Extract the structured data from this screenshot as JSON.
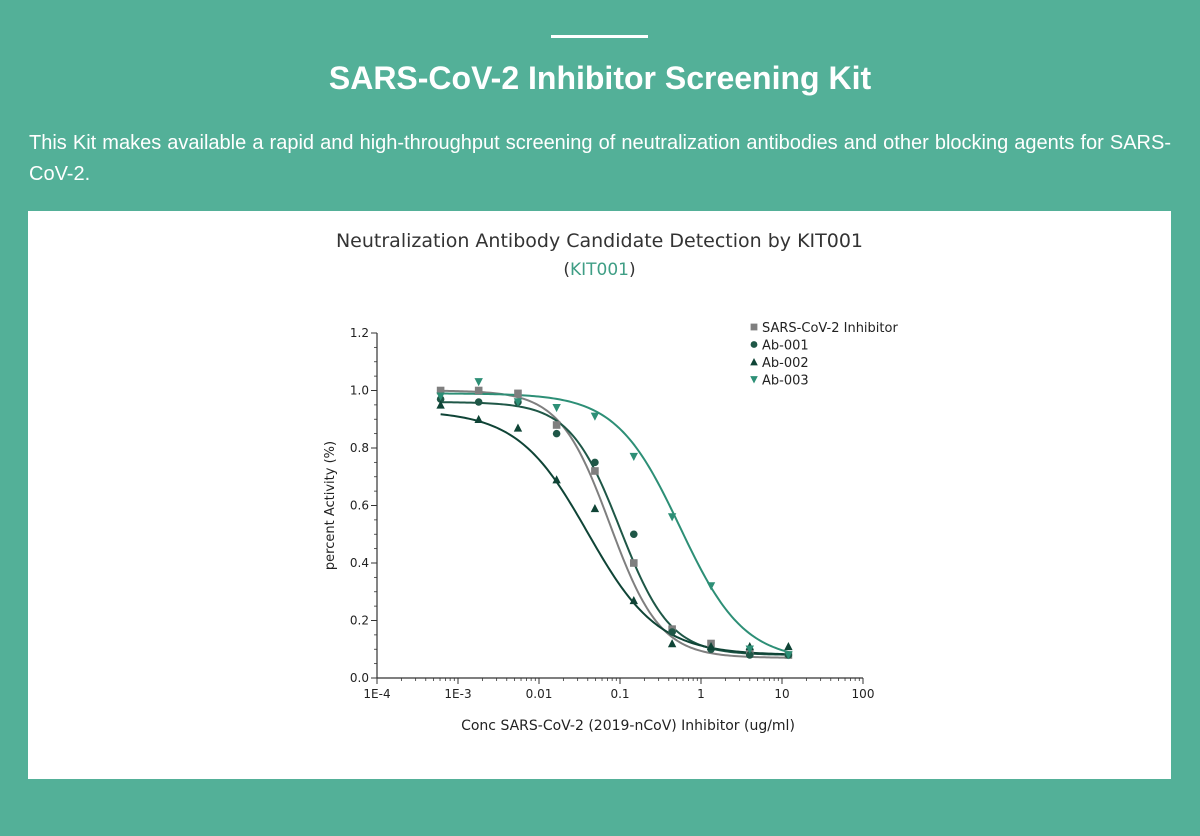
{
  "header": {
    "title": "SARS-CoV-2 Inhibitor Screening Kit",
    "description": "This Kit makes available a rapid and high-throughput screening of neutralization antibodies and other blocking agents for SARS-CoV-2."
  },
  "colors": {
    "background": "#53b098",
    "panel": "#ffffff",
    "accent": "#3f9e85"
  },
  "chart_data": {
    "type": "scatter",
    "title": "Neutralization Antibody Candidate Detection by KIT001",
    "subtitle_open": "(",
    "subtitle_link": "KIT001",
    "subtitle_close": ")",
    "xlabel": "Conc SARS-CoV-2 (2019-nCoV) Inhibitor (ug/ml)",
    "ylabel": "percent Activity (%)",
    "xscale": "log",
    "xlim": [
      0.0001,
      100
    ],
    "ylim": [
      0.0,
      1.2
    ],
    "xticks": [
      {
        "v": 0.0001,
        "label": "1E-4"
      },
      {
        "v": 0.001,
        "label": "1E-3"
      },
      {
        "v": 0.01,
        "label": "0.01"
      },
      {
        "v": 0.1,
        "label": "0.1"
      },
      {
        "v": 1,
        "label": "1"
      },
      {
        "v": 10,
        "label": "10"
      },
      {
        "v": 100,
        "label": "100"
      }
    ],
    "yticks": [
      {
        "v": 0.0,
        "label": "0.0"
      },
      {
        "v": 0.2,
        "label": "0.2"
      },
      {
        "v": 0.4,
        "label": "0.4"
      },
      {
        "v": 0.6,
        "label": "0.6"
      },
      {
        "v": 0.8,
        "label": "0.8"
      },
      {
        "v": 1.0,
        "label": "1.0"
      },
      {
        "v": 1.2,
        "label": "1.2"
      }
    ],
    "grid": false,
    "legend_position": "top-right",
    "series": [
      {
        "name": "SARS-CoV-2 Inhibitor",
        "marker": "square",
        "color": "#7f7f7f",
        "x": [
          0.00061,
          0.0018,
          0.0055,
          0.0165,
          0.049,
          0.148,
          0.44,
          1.33,
          4.0,
          12.0
        ],
        "y": [
          1.0,
          1.0,
          0.99,
          0.88,
          0.72,
          0.4,
          0.17,
          0.12,
          0.09,
          0.08
        ],
        "fit": {
          "top": 1.0,
          "bottom": 0.07,
          "ic50": 0.075,
          "hill": 1.4
        }
      },
      {
        "name": "Ab-001",
        "marker": "circle",
        "color": "#1f5747",
        "x": [
          0.00061,
          0.0018,
          0.0055,
          0.0165,
          0.049,
          0.148,
          0.44,
          1.33,
          4.0,
          12.0
        ],
        "y": [
          0.97,
          0.96,
          0.96,
          0.85,
          0.75,
          0.5,
          0.16,
          0.1,
          0.08,
          0.08
        ],
        "fit": {
          "top": 0.96,
          "bottom": 0.08,
          "ic50": 0.1,
          "hill": 1.4
        }
      },
      {
        "name": "Ab-002",
        "marker": "triangle-up",
        "color": "#0f4436",
        "x": [
          0.00061,
          0.0018,
          0.0055,
          0.0165,
          0.049,
          0.148,
          0.44,
          1.33,
          4.0,
          12.0
        ],
        "y": [
          0.95,
          0.9,
          0.87,
          0.69,
          0.59,
          0.27,
          0.12,
          0.11,
          0.11,
          0.11
        ],
        "fit": {
          "top": 0.93,
          "bottom": 0.08,
          "ic50": 0.04,
          "hill": 1.0
        }
      },
      {
        "name": "Ab-003",
        "marker": "triangle-down",
        "color": "#2d8f76",
        "x": [
          0.00061,
          0.0018,
          0.0055,
          0.0165,
          0.049,
          0.148,
          0.44,
          1.33,
          4.0,
          12.0
        ],
        "y": [
          0.98,
          1.03,
          0.96,
          0.94,
          0.91,
          0.77,
          0.56,
          0.32,
          0.1,
          0.08
        ],
        "fit": {
          "top": 0.99,
          "bottom": 0.06,
          "ic50": 0.55,
          "hill": 1.1
        }
      }
    ]
  }
}
